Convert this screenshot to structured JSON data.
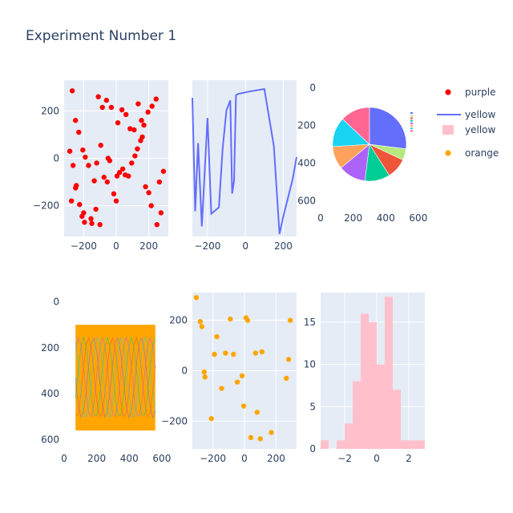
{
  "chart_data": {
    "title": "Experiment Number 1",
    "colors": {
      "plot_bg": "#e5ecf6",
      "grid": "#ffffff",
      "text": "#2a3f5f",
      "red": "#ff0000",
      "line": "#636efa",
      "pink": "#ffc0cb",
      "orange": "#ffa500"
    },
    "legend": {
      "position": "top-right",
      "items": [
        {
          "label": "purple",
          "kind": "marker",
          "color": "#ff0000"
        },
        {
          "label": "yellow",
          "kind": "line",
          "color": "#636efa"
        },
        {
          "label": "yellow",
          "kind": "box",
          "color": "#ffc0cb"
        },
        {
          "label": "orange",
          "kind": "marker",
          "color": "#ffa500"
        }
      ]
    },
    "panels": [
      {
        "type": "scatter",
        "xlim": [
          -320,
          320
        ],
        "ylim": [
          -330,
          330
        ],
        "xticks": [
          -200,
          0,
          200
        ],
        "yticks": [
          -200,
          0,
          200
        ],
        "x": [
          -270,
          -250,
          -230,
          -205,
          -190,
          -170,
          -135,
          -120,
          -95,
          -75,
          -55,
          -40,
          -15,
          0,
          20,
          40,
          75,
          95,
          115,
          130,
          150,
          160,
          180,
          200,
          215,
          250,
          275,
          -285,
          -265,
          -245,
          -225,
          -210,
          -195,
          -155,
          -125,
          -110,
          -85,
          -60,
          -30,
          10,
          35,
          60,
          85,
          110,
          135,
          155,
          170,
          195,
          220,
          245,
          265,
          290,
          -275,
          -250,
          -200,
          -150,
          -100,
          -50,
          5,
          55
        ],
        "y": [
          285,
          160,
          110,
          35,
          5,
          -30,
          -95,
          -20,
          55,
          -80,
          -100,
          -10,
          -150,
          -180,
          -60,
          -45,
          -75,
          -20,
          10,
          40,
          75,
          90,
          -120,
          -145,
          -200,
          -280,
          -230,
          30,
          -30,
          -115,
          -195,
          -245,
          -270,
          -255,
          -215,
          260,
          215,
          245,
          215,
          150,
          205,
          185,
          125,
          120,
          230,
          160,
          140,
          195,
          220,
          250,
          -100,
          -55,
          -180,
          -125,
          -230,
          -275,
          -280,
          0,
          -75,
          -70
        ],
        "color": "#ff0000"
      },
      {
        "type": "line",
        "xlim": [
          -280,
          270
        ],
        "ylim": [
          -310,
          310
        ],
        "xticks": [
          -200,
          0,
          200
        ],
        "yticks": [],
        "x": [
          -280,
          -265,
          -250,
          -230,
          -200,
          -180,
          -140,
          -120,
          -100,
          -80,
          -70,
          -60,
          -50,
          -40,
          20,
          100,
          150,
          180,
          200,
          250,
          270
        ],
        "y": [
          240,
          -210,
          60,
          -270,
          160,
          -220,
          -195,
          40,
          190,
          230,
          -140,
          -90,
          250,
          255,
          265,
          275,
          50,
          -300,
          -230,
          -80,
          5
        ],
        "color": "#636efa"
      },
      {
        "type": "pie-image",
        "xlim": [
          0,
          640
        ],
        "ylim": [
          640,
          -40
        ],
        "xticks": [
          0,
          200,
          400,
          600
        ],
        "yticks": [
          0,
          200,
          400,
          600
        ],
        "slices": [
          {
            "value": 27,
            "color": "#636efa"
          },
          {
            "value": 5,
            "color": "#b6e880"
          },
          {
            "value": 9,
            "color": "#ef553b"
          },
          {
            "value": 11,
            "color": "#00cc96"
          },
          {
            "value": 12,
            "color": "#ab63fa"
          },
          {
            "value": 10,
            "color": "#ffa15a"
          },
          {
            "value": 13,
            "color": "#19d3f3"
          },
          {
            "value": 13,
            "color": "#ff6692"
          }
        ]
      },
      {
        "type": "image",
        "xlim": [
          0,
          640
        ],
        "ylim": [
          640,
          -40
        ],
        "xticks": [
          0,
          200,
          400,
          600
        ],
        "yticks": [
          0,
          200,
          400,
          600
        ],
        "fill": "#ffa500"
      },
      {
        "type": "scatter",
        "xlim": [
          -330,
          330
        ],
        "ylim": [
          -310,
          310
        ],
        "xticks": [
          -200,
          0,
          200
        ],
        "yticks": [
          -200,
          0,
          200
        ],
        "x": [
          -305,
          -280,
          -270,
          -255,
          -250,
          -210,
          -190,
          -175,
          -145,
          -120,
          -90,
          -70,
          -45,
          -15,
          -5,
          10,
          20,
          40,
          70,
          80,
          100,
          110,
          170,
          265,
          280,
          290
        ],
        "y": [
          290,
          195,
          175,
          -5,
          -25,
          -190,
          65,
          135,
          -70,
          70,
          205,
          65,
          -45,
          -20,
          -140,
          210,
          200,
          -265,
          70,
          -165,
          -270,
          75,
          -245,
          -30,
          45,
          200
        ],
        "color": "#ffa500"
      },
      {
        "type": "histogram",
        "xlim": [
          -3.5,
          3
        ],
        "ylim": [
          0,
          18.5
        ],
        "xticks": [
          -2,
          0,
          2
        ],
        "yticks": [
          0,
          5,
          10,
          15
        ],
        "bins": [
          {
            "x0": -3.5,
            "x1": -3.0,
            "count": 1
          },
          {
            "x0": -2.5,
            "x1": -2.0,
            "count": 1
          },
          {
            "x0": -2.0,
            "x1": -1.5,
            "count": 3
          },
          {
            "x0": -1.5,
            "x1": -1.0,
            "count": 8
          },
          {
            "x0": -1.0,
            "x1": -0.5,
            "count": 16
          },
          {
            "x0": -0.5,
            "x1": 0.0,
            "count": 15
          },
          {
            "x0": 0.0,
            "x1": 0.5,
            "count": 10
          },
          {
            "x0": 0.5,
            "x1": 1.0,
            "count": 18
          },
          {
            "x0": 1.0,
            "x1": 1.5,
            "count": 7
          },
          {
            "x0": 1.5,
            "x1": 2.0,
            "count": 1
          },
          {
            "x0": 2.0,
            "x1": 2.5,
            "count": 1
          },
          {
            "x0": 2.5,
            "x1": 3.0,
            "count": 1
          }
        ],
        "color": "#ffc0cb"
      }
    ]
  }
}
